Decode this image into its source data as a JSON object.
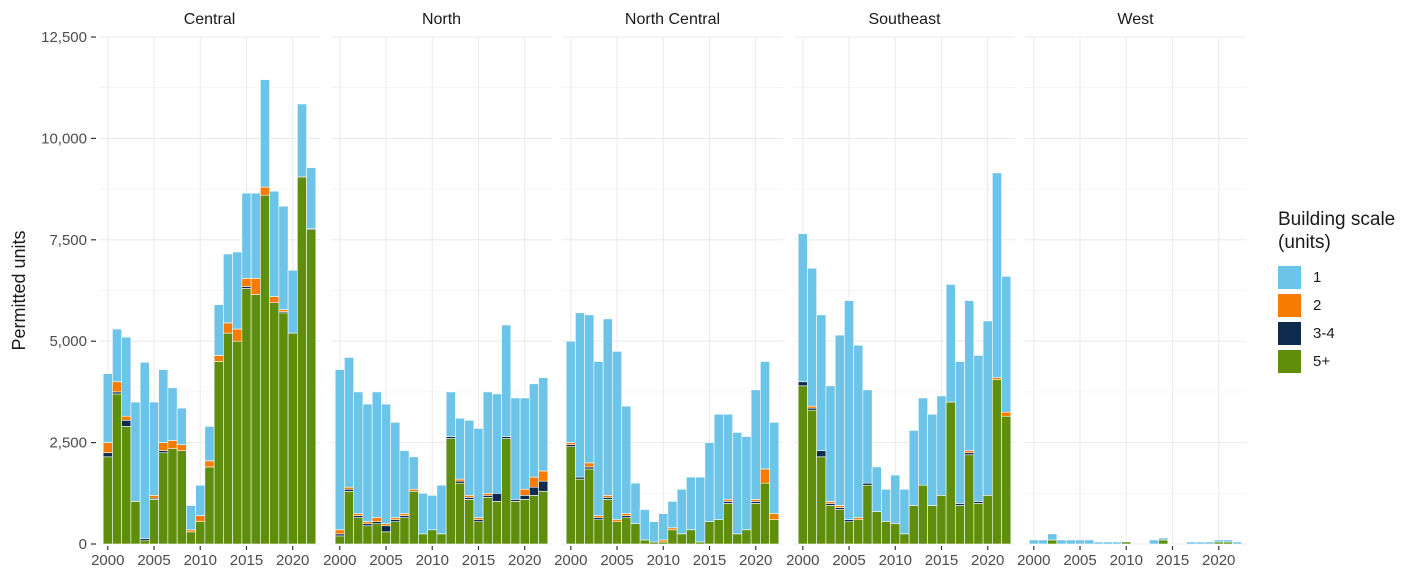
{
  "chart_data": {
    "type": "bar",
    "stacked": true,
    "title": "",
    "xlabel": "",
    "ylabel": "Permitted units",
    "ylim": [
      0,
      12500
    ],
    "yticks": [
      0,
      2500,
      5000,
      7500,
      10000,
      12500
    ],
    "ytick_labels": [
      "0",
      "2,500",
      "5,000",
      "7,500",
      "10,000",
      "12,500"
    ],
    "xticks": [
      2000,
      2005,
      2010,
      2015,
      2020
    ],
    "xtick_labels": [
      "2000",
      "2005",
      "2010",
      "2015",
      "2020"
    ],
    "grid": true,
    "legend_position": "right",
    "legend_title": "Building scale (units)",
    "legend_title_lines": [
      "Building scale",
      "(units)"
    ],
    "series_colors": {
      "1": "#6CC4E8",
      "2": "#F57C00",
      "3-4": "#0D2A4F",
      "5+": "#5E8E0B"
    },
    "legend": [
      {
        "label": "1",
        "color": "#6CC4E8"
      },
      {
        "label": "2",
        "color": "#F57C00"
      },
      {
        "label": "3-4",
        "color": "#0D2A4F"
      },
      {
        "label": "5+",
        "color": "#5E8E0B"
      }
    ],
    "x": [
      2000,
      2001,
      2002,
      2003,
      2004,
      2005,
      2006,
      2007,
      2008,
      2009,
      2010,
      2011,
      2012,
      2013,
      2014,
      2015,
      2016,
      2017,
      2018,
      2019,
      2020,
      2021,
      2022
    ],
    "panels": [
      {
        "name": "Central",
        "series": [
          {
            "name": "5+",
            "values": [
              2150,
              3700,
              2900,
              1050,
              80,
              1100,
              2250,
              2350,
              2300,
              300,
              550,
              1900,
              4500,
              5200,
              5000,
              6300,
              6150,
              8600,
              5950,
              5700,
              5200,
              9050,
              7750
            ]
          },
          {
            "name": "3-4",
            "values": [
              100,
              50,
              150,
              0,
              50,
              30,
              50,
              0,
              0,
              0,
              0,
              0,
              0,
              0,
              0,
              50,
              0,
              0,
              0,
              30,
              0,
              0,
              30
            ]
          },
          {
            "name": "2",
            "values": [
              250,
              250,
              100,
              0,
              0,
              70,
              200,
              200,
              150,
              50,
              150,
              150,
              150,
              250,
              300,
              200,
              400,
              200,
              150,
              50,
              0,
              0,
              0
            ]
          },
          {
            "name": "1",
            "values": [
              1700,
              1300,
              1950,
              2450,
              4350,
              2300,
              1800,
              1300,
              900,
              600,
              750,
              850,
              1250,
              1700,
              1900,
              2100,
              2100,
              2650,
              2600,
              2550,
              1550,
              1800,
              1500
            ]
          }
        ]
      },
      {
        "name": "North",
        "series": [
          {
            "name": "5+",
            "values": [
              200,
              1300,
              650,
              450,
              500,
              300,
              550,
              650,
              1300,
              250,
              350,
              250,
              2600,
              1500,
              1100,
              550,
              1150,
              1050,
              2600,
              1050,
              1100,
              1200,
              1300
            ]
          },
          {
            "name": "3-4",
            "values": [
              50,
              50,
              50,
              50,
              50,
              150,
              50,
              50,
              0,
              0,
              0,
              0,
              50,
              50,
              50,
              50,
              50,
              200,
              50,
              50,
              100,
              200,
              250
            ]
          },
          {
            "name": "2",
            "values": [
              100,
              50,
              50,
              50,
              100,
              50,
              50,
              50,
              50,
              0,
              0,
              0,
              0,
              50,
              50,
              50,
              50,
              0,
              0,
              0,
              150,
              250,
              250
            ]
          },
          {
            "name": "1",
            "values": [
              3950,
              3200,
              3000,
              2900,
              3100,
              2950,
              2350,
              1550,
              800,
              1000,
              850,
              1200,
              1100,
              1500,
              1850,
              2200,
              2500,
              2450,
              2750,
              2500,
              2250,
              2300,
              2300
            ]
          }
        ]
      },
      {
        "name": "North Central",
        "series": [
          {
            "name": "5+",
            "values": [
              2400,
              1600,
              1850,
              600,
              1100,
              550,
              650,
              500,
              100,
              50,
              50,
              350,
              250,
              350,
              50,
              550,
              600,
              1000,
              250,
              350,
              1000,
              1500,
              600
            ]
          },
          {
            "name": "3-4",
            "values": [
              50,
              50,
              50,
              50,
              50,
              0,
              50,
              0,
              0,
              0,
              0,
              0,
              0,
              0,
              0,
              0,
              0,
              50,
              0,
              0,
              50,
              0,
              0
            ]
          },
          {
            "name": "2",
            "values": [
              50,
              0,
              100,
              50,
              50,
              50,
              50,
              0,
              0,
              0,
              50,
              50,
              0,
              0,
              0,
              0,
              0,
              50,
              0,
              0,
              50,
              350,
              150
            ]
          },
          {
            "name": "1",
            "values": [
              2500,
              4050,
              3650,
              3800,
              4350,
              4150,
              2650,
              1000,
              750,
              500,
              650,
              650,
              1100,
              1300,
              1600,
              1950,
              2600,
              2100,
              2500,
              2300,
              2700,
              2650,
              2250
            ]
          }
        ]
      },
      {
        "name": "Southeast",
        "series": [
          {
            "name": "5+",
            "values": [
              3900,
              3300,
              2150,
              950,
              850,
              550,
              600,
              1450,
              800,
              550,
              500,
              250,
              950,
              1450,
              950,
              1200,
              3500,
              950,
              2200,
              1000,
              1200,
              4050,
              3150
            ]
          },
          {
            "name": "3-4",
            "values": [
              100,
              50,
              150,
              50,
              50,
              50,
              0,
              50,
              0,
              0,
              0,
              0,
              0,
              0,
              0,
              0,
              0,
              50,
              50,
              50,
              0,
              0,
              0
            ]
          },
          {
            "name": "2",
            "values": [
              0,
              50,
              0,
              50,
              50,
              0,
              50,
              0,
              0,
              0,
              0,
              0,
              0,
              0,
              0,
              0,
              0,
              0,
              50,
              0,
              0,
              50,
              100
            ]
          },
          {
            "name": "1",
            "values": [
              3650,
              3400,
              3350,
              2850,
              4200,
              5400,
              4250,
              2300,
              1100,
              800,
              1200,
              1100,
              1850,
              2150,
              2250,
              2450,
              2900,
              3500,
              3700,
              3600,
              4300,
              5050,
              3350
            ]
          }
        ]
      },
      {
        "name": "West",
        "series": [
          {
            "name": "5+",
            "values": [
              0,
              0,
              100,
              0,
              0,
              0,
              0,
              0,
              0,
              0,
              50,
              0,
              0,
              0,
              100,
              0,
              0,
              0,
              0,
              0,
              50,
              50,
              0
            ]
          },
          {
            "name": "3-4",
            "values": [
              0,
              0,
              0,
              0,
              0,
              0,
              0,
              0,
              0,
              0,
              0,
              0,
              0,
              0,
              0,
              0,
              0,
              0,
              0,
              0,
              0,
              0,
              0
            ]
          },
          {
            "name": "2",
            "values": [
              0,
              0,
              0,
              0,
              0,
              0,
              0,
              0,
              0,
              0,
              0,
              0,
              0,
              0,
              0,
              0,
              0,
              0,
              0,
              0,
              0,
              0,
              0
            ]
          },
          {
            "name": "1",
            "values": [
              100,
              100,
              150,
              100,
              100,
              100,
              100,
              50,
              50,
              50,
              0,
              0,
              0,
              100,
              50,
              0,
              0,
              50,
              50,
              50,
              50,
              50,
              50
            ]
          }
        ]
      }
    ]
  }
}
